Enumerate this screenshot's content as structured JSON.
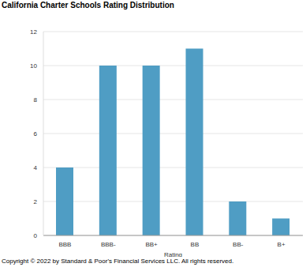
{
  "chart_data": {
    "type": "bar",
    "title": "California Charter Schools Rating Distribution",
    "x_label": "Rating",
    "source": "Copyright © 2022 by Standard & Poor's Financial Services LLC. All rights reserved.",
    "categories": [
      "BBB",
      "BBB-",
      "BB+",
      "BB",
      "BB-",
      "B+"
    ],
    "values": [
      4,
      10,
      10,
      11,
      2,
      1
    ],
    "color": "#4f9dc4",
    "ylim": [
      0,
      12
    ],
    "yticks": [
      0,
      2,
      4,
      6,
      8,
      10,
      12
    ],
    "grid": true
  }
}
